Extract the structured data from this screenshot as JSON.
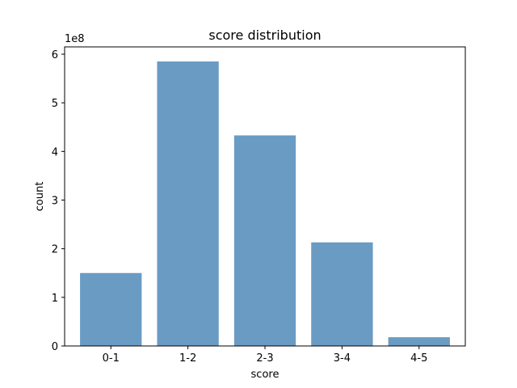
{
  "chart_data": {
    "type": "bar",
    "title": "score distribution",
    "xlabel": "score",
    "ylabel": "count",
    "categories": [
      "0-1",
      "1-2",
      "2-3",
      "3-4",
      "4-5"
    ],
    "values": [
      150000000,
      585000000,
      433000000,
      213000000,
      18000000
    ],
    "ylim": [
      0,
      615000000
    ],
    "yticks": [
      0,
      100000000,
      200000000,
      300000000,
      400000000,
      500000000,
      600000000
    ],
    "ytick_labels": [
      "0",
      "1",
      "2",
      "3",
      "4",
      "5",
      "6"
    ],
    "offset_text": "1e8",
    "bar_color": "#6a9bc3",
    "grid": false,
    "legend": "none"
  }
}
